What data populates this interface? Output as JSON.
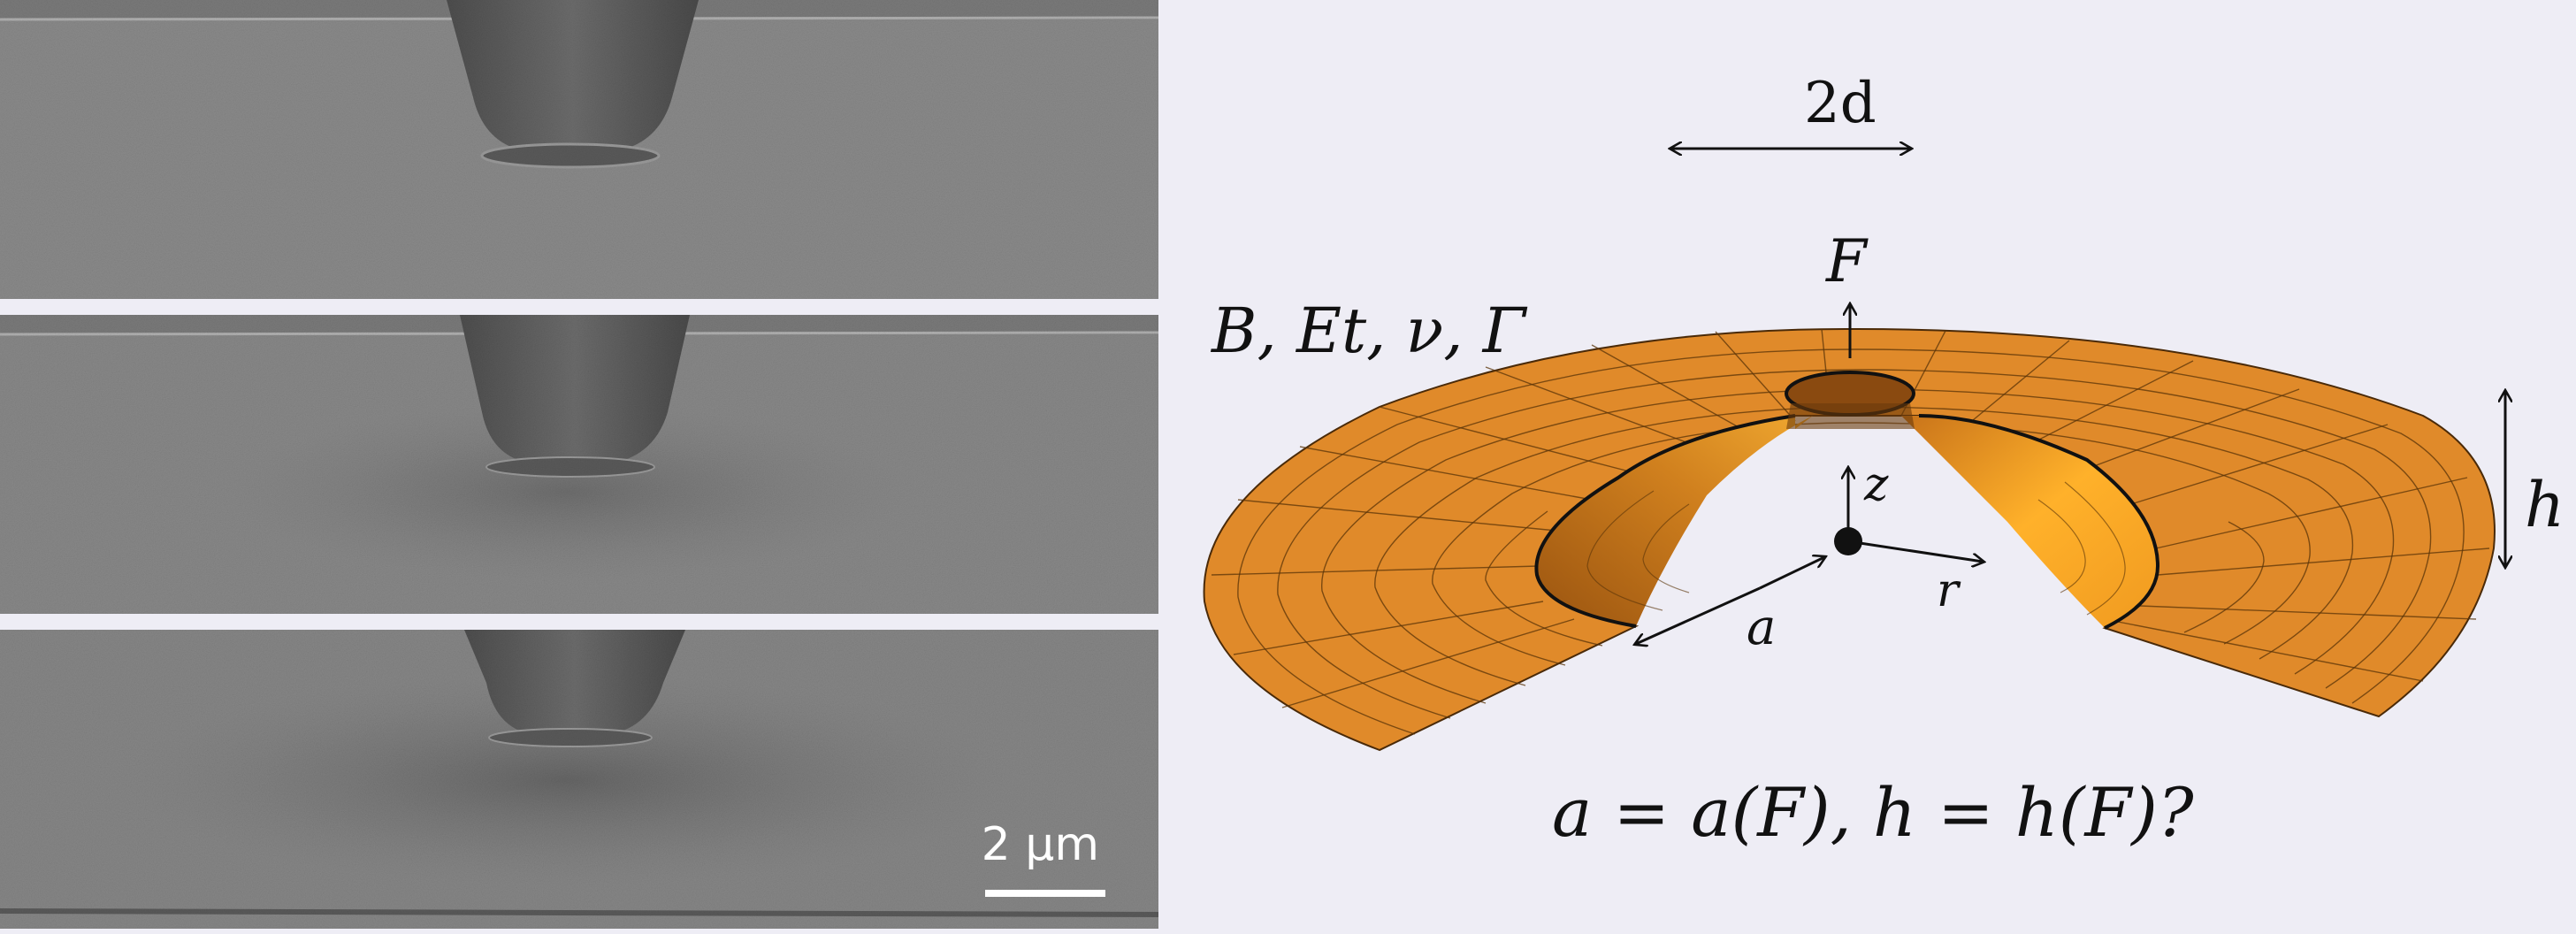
{
  "scale_bar": {
    "label": "2 µm"
  },
  "diagram": {
    "width_label": "2d",
    "force_label": "F",
    "params_label": "B, Et, ν, Γ",
    "height_label": "h",
    "z_label": "z",
    "r_label": "r",
    "a_label": "a",
    "question": "a = a(F), h = h(F)?"
  },
  "colors": {
    "sheet_orange": "#e08a2a",
    "sheet_dark": "#b8661a",
    "cone_light": "#f5b030",
    "tip_fill": "#8a4a10",
    "background": "#eeedf5",
    "sem_gray": "#6b6b6b"
  }
}
